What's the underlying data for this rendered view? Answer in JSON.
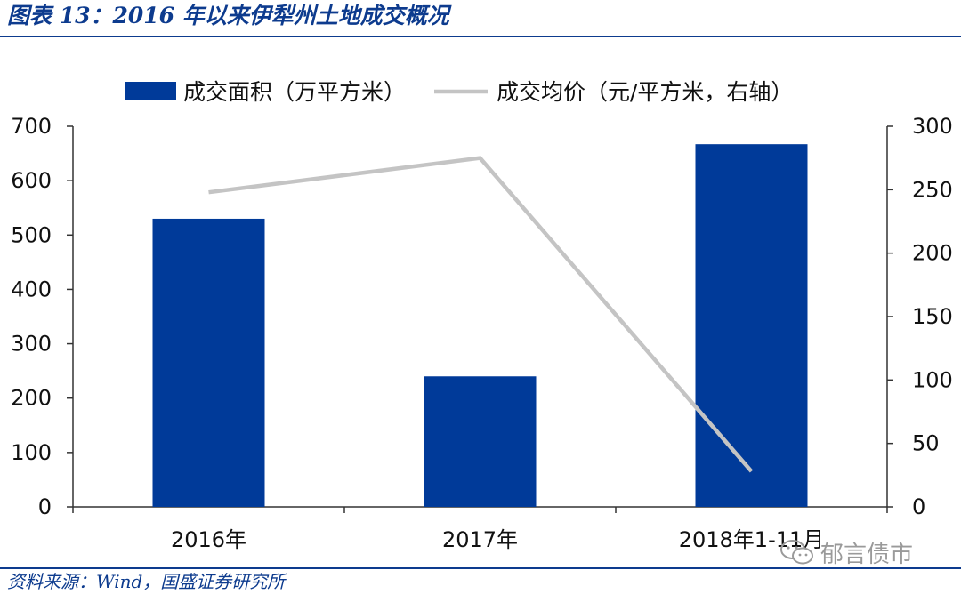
{
  "title": "图表 13：2016 年以来伊犁州土地成交概况",
  "source": "资料来源：Wind，国盛证券研究所",
  "watermark": "郁言债市",
  "colors": {
    "bar": "#003a99",
    "line": "#c4c4c4",
    "accent": "#0d3b8e"
  },
  "chart_data": {
    "type": "bar",
    "categories": [
      "2016年",
      "2017年",
      "2018年1-11月"
    ],
    "series": [
      {
        "name": "成交面积（万平方米）",
        "type": "bar",
        "axis": "left",
        "values": [
          530,
          240,
          667
        ]
      },
      {
        "name": "成交均价（元/平方米，右轴）",
        "type": "line",
        "axis": "right",
        "values": [
          248,
          275,
          28
        ]
      }
    ],
    "y_left": {
      "min": 0,
      "max": 700,
      "ticks": [
        "0",
        "100",
        "200",
        "300",
        "400",
        "500",
        "600",
        "700"
      ]
    },
    "y_right": {
      "min": 0,
      "max": 300,
      "ticks": [
        "0",
        "50",
        "100",
        "150",
        "200",
        "250",
        "300"
      ]
    },
    "grid": false,
    "legend": "top"
  }
}
